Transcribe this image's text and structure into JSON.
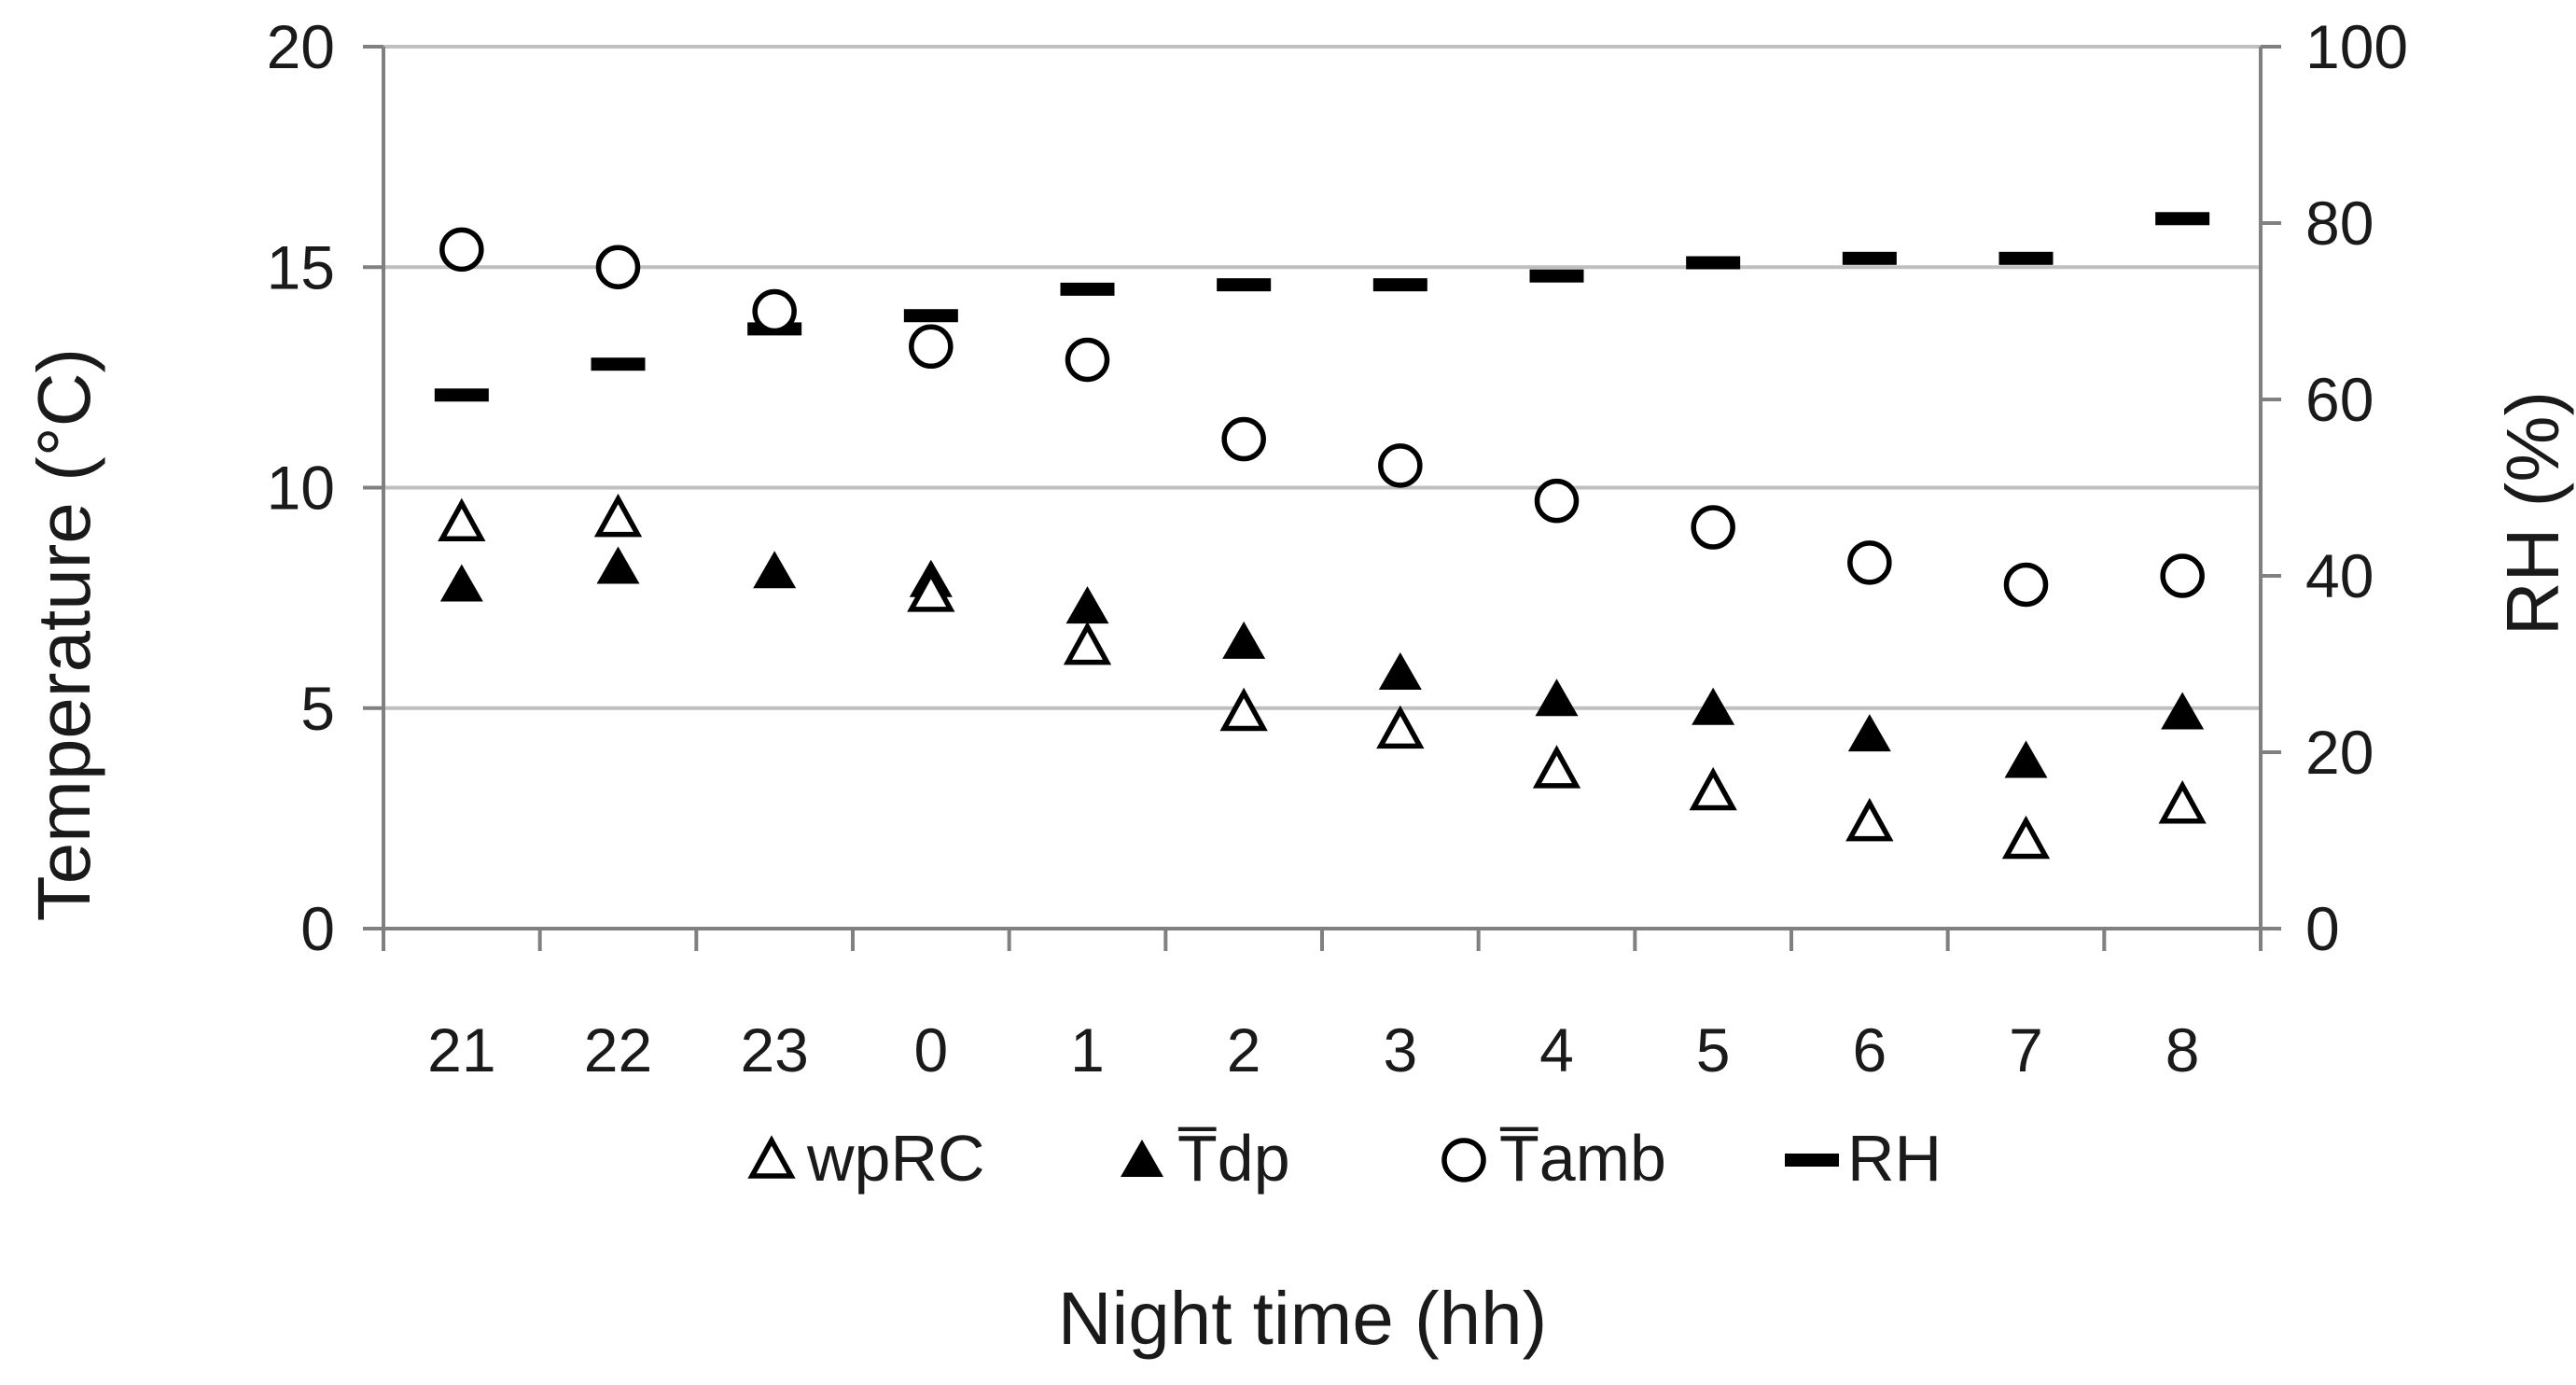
{
  "colors": {
    "background": "#ffffff",
    "gridline": "#bfbfbf",
    "axis": "#808080",
    "marker": "#000000",
    "text": "#1a1a1a"
  },
  "chart_data": {
    "type": "scatter",
    "xlabel": "Night time (hh)",
    "ylabel": "Temperature (°C)",
    "y2label": "RH (%)",
    "categories": [
      "21",
      "22",
      "23",
      "0",
      "1",
      "2",
      "3",
      "4",
      "5",
      "6",
      "7",
      "8"
    ],
    "ylim": [
      0,
      20
    ],
    "yticks": [
      "0",
      "5",
      "10",
      "15",
      "20"
    ],
    "y2lim": [
      0,
      100
    ],
    "y2ticks": [
      "0",
      "20",
      "40",
      "60",
      "80",
      "100"
    ],
    "grid": "horizontal gridlines at major y ticks",
    "legend_position": "bottom",
    "series": [
      {
        "name": "wpRC",
        "axis": "left",
        "marker": "open-triangle",
        "values": [
          9.2,
          9.3,
          null,
          7.6,
          6.4,
          4.9,
          4.5,
          3.6,
          3.1,
          2.4,
          2.0,
          2.8
        ]
      },
      {
        "name": "T̅dp",
        "axis": "left",
        "marker": "filled-triangle",
        "values": [
          7.8,
          8.2,
          8.1,
          7.9,
          7.3,
          6.5,
          5.8,
          5.2,
          5.0,
          4.4,
          3.8,
          4.9
        ]
      },
      {
        "name": "T̅amb",
        "axis": "left",
        "marker": "open-circle",
        "values": [
          15.4,
          15.0,
          14.0,
          13.2,
          12.9,
          11.1,
          10.5,
          9.7,
          9.1,
          8.3,
          7.8,
          8.0
        ]
      },
      {
        "name": "RH",
        "axis": "right",
        "marker": "dash",
        "values": [
          60.5,
          64,
          68,
          69.5,
          72.5,
          73,
          73,
          74,
          75.5,
          76,
          76,
          80.5
        ]
      }
    ]
  }
}
